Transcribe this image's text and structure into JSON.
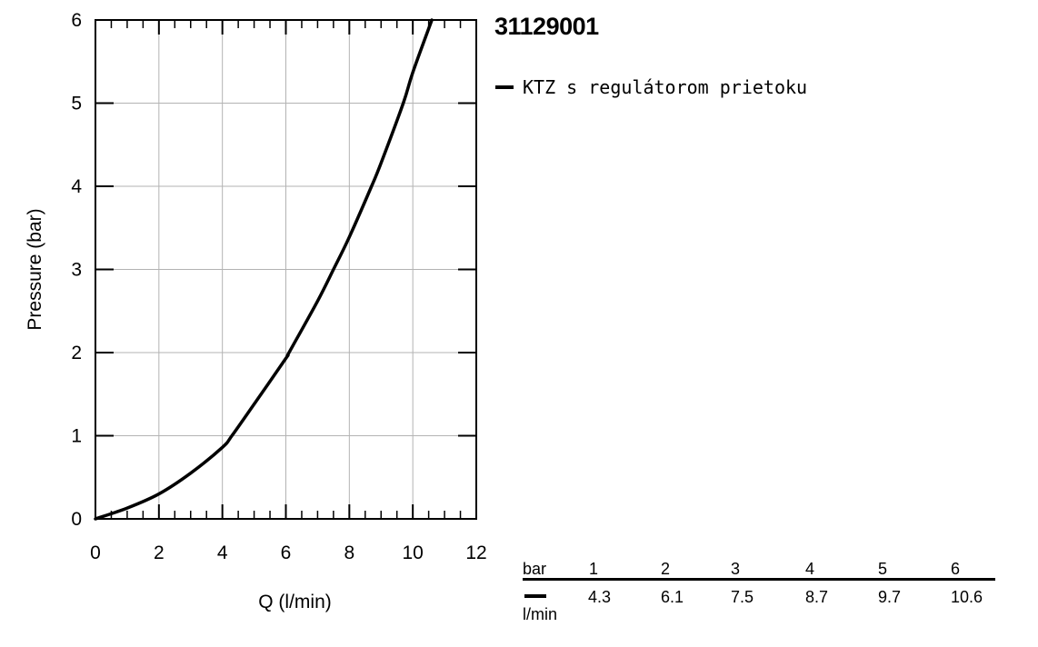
{
  "chart_data": {
    "type": "line",
    "xlabel": "Q (l/min)",
    "ylabel": "Pressure (bar)",
    "xlim": [
      0,
      12
    ],
    "ylim": [
      0,
      6
    ],
    "x_ticks": [
      0,
      2,
      4,
      6,
      8,
      10,
      12
    ],
    "y_ticks": [
      0,
      1,
      2,
      3,
      4,
      5,
      6
    ],
    "grid": true,
    "series": [
      {
        "name": "KTZ s regulátorom prietoku",
        "color": "#000000",
        "x": [
          0,
          1,
          2,
          3,
          4,
          4.3,
          5,
          6,
          6.1,
          7,
          7.5,
          8,
          8.7,
          9,
          9.7,
          10,
          10.6
        ],
        "y": [
          0,
          0.13,
          0.3,
          0.55,
          0.86,
          1,
          1.38,
          1.93,
          2,
          2.62,
          3,
          3.39,
          4,
          4.28,
          5,
          5.37,
          6
        ]
      }
    ]
  },
  "product_code": "31129001",
  "legend": {
    "items": [
      {
        "label": "KTZ s regulátorom prietoku",
        "color": "#000000"
      }
    ]
  },
  "flow_table": {
    "header_label": "bar",
    "unit_label": "l/min",
    "pressures": [
      "1",
      "2",
      "3",
      "4",
      "5",
      "6"
    ],
    "flows": [
      "4.3",
      "6.1",
      "7.5",
      "8.7",
      "9.7",
      "10.6"
    ]
  }
}
